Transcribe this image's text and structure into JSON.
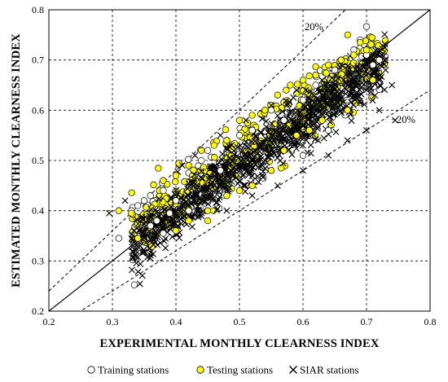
{
  "chart_data": {
    "type": "scatter",
    "xlabel": "EXPERIMENTAL MONTHLY CLEARNESS INDEX",
    "ylabel": "ESTIMATED MONTHLY CLEARNESS INDEX",
    "xlim": [
      0.2,
      0.8
    ],
    "ylim": [
      0.2,
      0.8
    ],
    "xticks": [
      "0.2",
      "0.3",
      "0.4",
      "0.5",
      "0.6",
      "0.7",
      "0.8"
    ],
    "yticks": [
      "0.2",
      "0.3",
      "0.4",
      "0.5",
      "0.6",
      "0.7",
      "0.8"
    ],
    "grid": "dashed",
    "reference_lines": [
      {
        "label": "",
        "slope": 1.0
      },
      {
        "label": "20%",
        "slope": 1.2
      },
      {
        "label": "−20%",
        "slope": 0.8
      }
    ],
    "legend_position": "bottom",
    "series": [
      {
        "name": "Training stations",
        "marker": "open-circle",
        "color": "#ffffff",
        "points": [
          [
            0.31,
            0.345
          ],
          [
            0.33,
            0.4
          ],
          [
            0.34,
            0.41
          ],
          [
            0.35,
            0.42
          ],
          [
            0.36,
            0.43
          ],
          [
            0.37,
            0.38
          ],
          [
            0.38,
            0.44
          ],
          [
            0.39,
            0.395
          ],
          [
            0.4,
            0.42
          ],
          [
            0.42,
            0.4
          ],
          [
            0.44,
            0.5
          ],
          [
            0.45,
            0.52
          ],
          [
            0.47,
            0.48
          ],
          [
            0.5,
            0.55
          ],
          [
            0.52,
            0.56
          ],
          [
            0.55,
            0.6
          ],
          [
            0.57,
            0.58
          ],
          [
            0.6,
            0.62
          ],
          [
            0.62,
            0.65
          ],
          [
            0.65,
            0.68
          ],
          [
            0.66,
            0.7
          ],
          [
            0.68,
            0.72
          ],
          [
            0.69,
            0.74
          ],
          [
            0.7,
            0.71
          ],
          [
            0.71,
            0.69
          ],
          [
            0.72,
            0.7
          ],
          [
            0.6,
            0.51
          ],
          [
            0.64,
            0.56
          ],
          [
            0.36,
            0.37
          ],
          [
            0.38,
            0.355
          ]
        ]
      },
      {
        "name": "Testing stations",
        "marker": "filled-circle",
        "color": "#ffff00",
        "points": [
          [
            0.31,
            0.4
          ],
          [
            0.33,
            0.395
          ],
          [
            0.34,
            0.345
          ],
          [
            0.38,
            0.46
          ],
          [
            0.4,
            0.47
          ],
          [
            0.42,
            0.49
          ],
          [
            0.44,
            0.52
          ],
          [
            0.46,
            0.53
          ],
          [
            0.48,
            0.54
          ],
          [
            0.5,
            0.58
          ],
          [
            0.52,
            0.59
          ],
          [
            0.54,
            0.6
          ],
          [
            0.56,
            0.63
          ],
          [
            0.58,
            0.65
          ],
          [
            0.6,
            0.66
          ],
          [
            0.62,
            0.67
          ],
          [
            0.64,
            0.69
          ],
          [
            0.66,
            0.7
          ],
          [
            0.68,
            0.71
          ],
          [
            0.7,
            0.72
          ],
          [
            0.69,
            0.735
          ],
          [
            0.71,
            0.66
          ],
          [
            0.67,
            0.6
          ],
          [
            0.63,
            0.58
          ],
          [
            0.59,
            0.55
          ],
          [
            0.55,
            0.48
          ],
          [
            0.52,
            0.45
          ],
          [
            0.48,
            0.43
          ],
          [
            0.45,
            0.4
          ],
          [
            0.42,
            0.38
          ],
          [
            0.4,
            0.36
          ],
          [
            0.45,
            0.38
          ],
          [
            0.5,
            0.44
          ],
          [
            0.57,
            0.52
          ],
          [
            0.61,
            0.56
          ]
        ]
      },
      {
        "name": "SIAR stations",
        "marker": "x",
        "color": "#000000",
        "points": [
          [
            0.295,
            0.395
          ],
          [
            0.32,
            0.42
          ],
          [
            0.36,
            0.38
          ],
          [
            0.4,
            0.4
          ],
          [
            0.42,
            0.43
          ],
          [
            0.44,
            0.42
          ],
          [
            0.46,
            0.45
          ],
          [
            0.48,
            0.47
          ],
          [
            0.5,
            0.48
          ],
          [
            0.52,
            0.5
          ],
          [
            0.54,
            0.52
          ],
          [
            0.56,
            0.54
          ],
          [
            0.58,
            0.56
          ],
          [
            0.6,
            0.57
          ],
          [
            0.62,
            0.59
          ],
          [
            0.64,
            0.61
          ],
          [
            0.66,
            0.62
          ],
          [
            0.68,
            0.63
          ],
          [
            0.7,
            0.64
          ],
          [
            0.72,
            0.66
          ],
          [
            0.73,
            0.68
          ],
          [
            0.74,
            0.65
          ],
          [
            0.745,
            0.58
          ],
          [
            0.72,
            0.6
          ],
          [
            0.7,
            0.56
          ],
          [
            0.67,
            0.54
          ],
          [
            0.64,
            0.51
          ],
          [
            0.6,
            0.48
          ],
          [
            0.56,
            0.45
          ],
          [
            0.52,
            0.43
          ],
          [
            0.48,
            0.4
          ],
          [
            0.44,
            0.39
          ],
          [
            0.41,
            0.49
          ],
          [
            0.43,
            0.51
          ],
          [
            0.47,
            0.55
          ],
          [
            0.51,
            0.58
          ],
          [
            0.55,
            0.61
          ],
          [
            0.59,
            0.64
          ],
          [
            0.63,
            0.66
          ],
          [
            0.67,
            0.68
          ],
          [
            0.71,
            0.7
          ]
        ]
      }
    ]
  },
  "annotations": {
    "upper_line_label": "20%",
    "lower_line_label": "−20%"
  }
}
